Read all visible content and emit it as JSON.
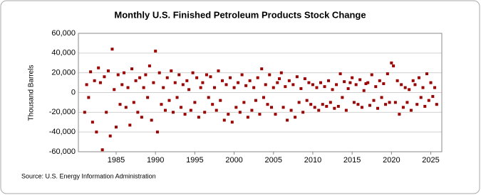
{
  "chart_data": {
    "type": "scatter",
    "title": "Monthly U.S. Finished Petroleum Products Stock Change",
    "y_label": "Thousand Barrels",
    "source": "Source: U.S. Energy Information Administration",
    "color": "#990000",
    "grid": true,
    "xlim": [
      1980.2,
      2026.4
    ],
    "xticks": [
      1985,
      1990,
      1995,
      2000,
      2005,
      2010,
      2015,
      2020,
      2025
    ],
    "ylim": [
      -60000,
      60000
    ],
    "yticks": [
      {
        "value": -60000,
        "label": "-60,000"
      },
      {
        "value": -40000,
        "label": "-40,000"
      },
      {
        "value": -20000,
        "label": "-20,000"
      },
      0,
      {
        "value": 20000,
        "label": "20,000"
      },
      {
        "value": 40000,
        "label": "40,000"
      },
      {
        "value": 60000,
        "label": "60,000"
      }
    ],
    "x": [
      1981,
      1981.25,
      1981.5,
      1981.75,
      1982,
      1982.25,
      1982.5,
      1982.75,
      1983,
      1983.25,
      1983.5,
      1983.75,
      1984,
      1984.25,
      1984.5,
      1984.75,
      1985,
      1985.25,
      1985.5,
      1985.75,
      1986,
      1986.25,
      1986.5,
      1986.75,
      1987,
      1987.25,
      1987.5,
      1987.75,
      1988,
      1988.25,
      1988.5,
      1988.75,
      1989,
      1989.25,
      1989.5,
      1989.75,
      1990,
      1990.25,
      1990.5,
      1990.75,
      1991,
      1991.25,
      1991.5,
      1991.75,
      1992,
      1992.25,
      1992.5,
      1992.75,
      1993,
      1993.25,
      1993.5,
      1993.75,
      1994,
      1994.25,
      1994.5,
      1994.75,
      1995,
      1995.25,
      1995.5,
      1995.75,
      1996,
      1996.25,
      1996.5,
      1996.75,
      1997,
      1997.25,
      1997.5,
      1997.75,
      1998,
      1998.25,
      1998.5,
      1998.75,
      1999,
      1999.25,
      1999.5,
      1999.75,
      2000,
      2000.25,
      2000.5,
      2000.75,
      2001,
      2001.25,
      2001.5,
      2001.75,
      2002,
      2002.25,
      2002.5,
      2002.75,
      2003,
      2003.25,
      2003.5,
      2003.75,
      2004,
      2004.25,
      2004.5,
      2004.75,
      2005,
      2005.25,
      2005.5,
      2005.75,
      2006,
      2006.25,
      2006.5,
      2006.75,
      2007,
      2007.25,
      2007.5,
      2007.75,
      2008,
      2008.25,
      2008.5,
      2008.75,
      2009,
      2009.25,
      2009.5,
      2009.75,
      2010,
      2010.25,
      2010.5,
      2010.75,
      2011,
      2011.25,
      2011.5,
      2011.75,
      2012,
      2012.25,
      2012.5,
      2012.75,
      2013,
      2013.25,
      2013.5,
      2013.75,
      2014,
      2014.25,
      2014.5,
      2014.75,
      2015,
      2015.25,
      2015.5,
      2015.75,
      2016,
      2016.25,
      2016.5,
      2016.75,
      2017,
      2017.25,
      2017.5,
      2017.75,
      2018,
      2018.25,
      2018.5,
      2018.75,
      2019,
      2019.25,
      2019.5,
      2019.75,
      2020,
      2020.25,
      2020.5,
      2020.75,
      2021,
      2021.25,
      2021.5,
      2021.75,
      2022,
      2022.25,
      2022.5,
      2022.75,
      2023,
      2023.25,
      2023.5,
      2023.75,
      2024,
      2024.25,
      2024.5,
      2024.75,
      2025,
      2025.25,
      2025.5,
      2025.75
    ],
    "values": [
      -20000,
      8000,
      -5000,
      21000,
      -30000,
      12000,
      -40000,
      25000,
      10000,
      -58000,
      16000,
      -20000,
      22000,
      -44000,
      44000,
      3000,
      -35000,
      18000,
      -12000,
      8000,
      20000,
      -15000,
      5000,
      -33000,
      24000,
      -10000,
      12000,
      -20000,
      15000,
      -25000,
      5000,
      18000,
      -5000,
      27000,
      -28000,
      10000,
      42000,
      -40000,
      20000,
      -12000,
      5000,
      -18000,
      15000,
      -8000,
      22000,
      -20000,
      10000,
      -5000,
      18000,
      -15000,
      8000,
      -22000,
      12000,
      3000,
      -18000,
      20000,
      -10000,
      15000,
      -25000,
      5000,
      10000,
      -20000,
      18000,
      -5000,
      16000,
      -12000,
      5000,
      -18000,
      22000,
      -8000,
      12000,
      -28000,
      8000,
      -22000,
      15000,
      -30000,
      5000,
      -15000,
      10000,
      -20000,
      18000,
      -10000,
      7000,
      -25000,
      12000,
      -18000,
      5000,
      -8000,
      15000,
      -22000,
      24000,
      -5000,
      8000,
      -12000,
      18000,
      -15000,
      5000,
      -22000,
      10000,
      14000,
      20000,
      -15000,
      6000,
      -28000,
      12000,
      -18000,
      8000,
      -25000,
      16000,
      -10000,
      4000,
      -20000,
      14000,
      -8000,
      10000,
      -12000,
      8000,
      -15000,
      5000,
      -18000,
      10000,
      -12000,
      6000,
      -14000,
      12000,
      -10000,
      3000,
      -16000,
      8000,
      -14000,
      19000,
      -5000,
      11000,
      -18000,
      4000,
      10000,
      15000,
      -10000,
      8000,
      -12000,
      13000,
      -15000,
      2000,
      9000,
      10000,
      -13000,
      18000,
      -8000,
      6000,
      -16000,
      12000,
      -5000,
      9000,
      -12000,
      19000,
      -10000,
      30000,
      27000,
      -10000,
      12000,
      -22000,
      8000,
      -15000,
      5000,
      -10000,
      3000,
      -18000,
      12000,
      8000,
      -12000,
      15000,
      -5000,
      5000,
      -14000,
      19000,
      -8000,
      10000,
      -4000,
      5000,
      -12000
    ]
  }
}
